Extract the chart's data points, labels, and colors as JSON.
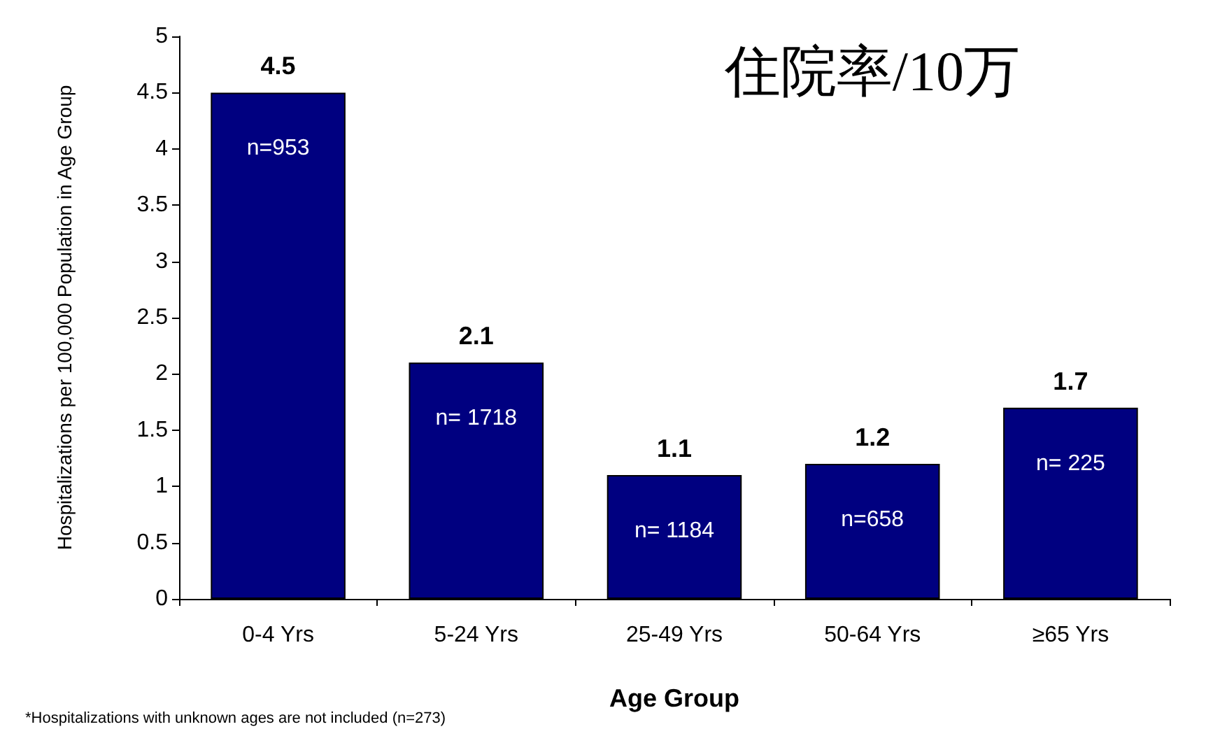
{
  "chart_data": {
    "type": "bar",
    "title": "住院率/10万",
    "xlabel": "Age Group",
    "ylabel": "Hospitalizations per 100,000 Population in Age Group",
    "categories": [
      "0-4 Yrs",
      "5-24 Yrs",
      "25-49 Yrs",
      "50-64 Yrs",
      "≥65 Yrs"
    ],
    "values": [
      4.5,
      2.1,
      1.1,
      1.2,
      1.7
    ],
    "color": "#000080",
    "data_labels": true,
    "ylim": [
      0,
      5
    ],
    "yticks": [
      0,
      0.5,
      1,
      1.5,
      2,
      2.5,
      3,
      3.5,
      4,
      4.5,
      5
    ],
    "grid": false,
    "annotations": [
      "n=953",
      "n= 1718",
      "n= 1184",
      "n=658",
      "n= 225",
      "*Hospitalizations with unknown ages are not included (n=273)"
    ]
  }
}
